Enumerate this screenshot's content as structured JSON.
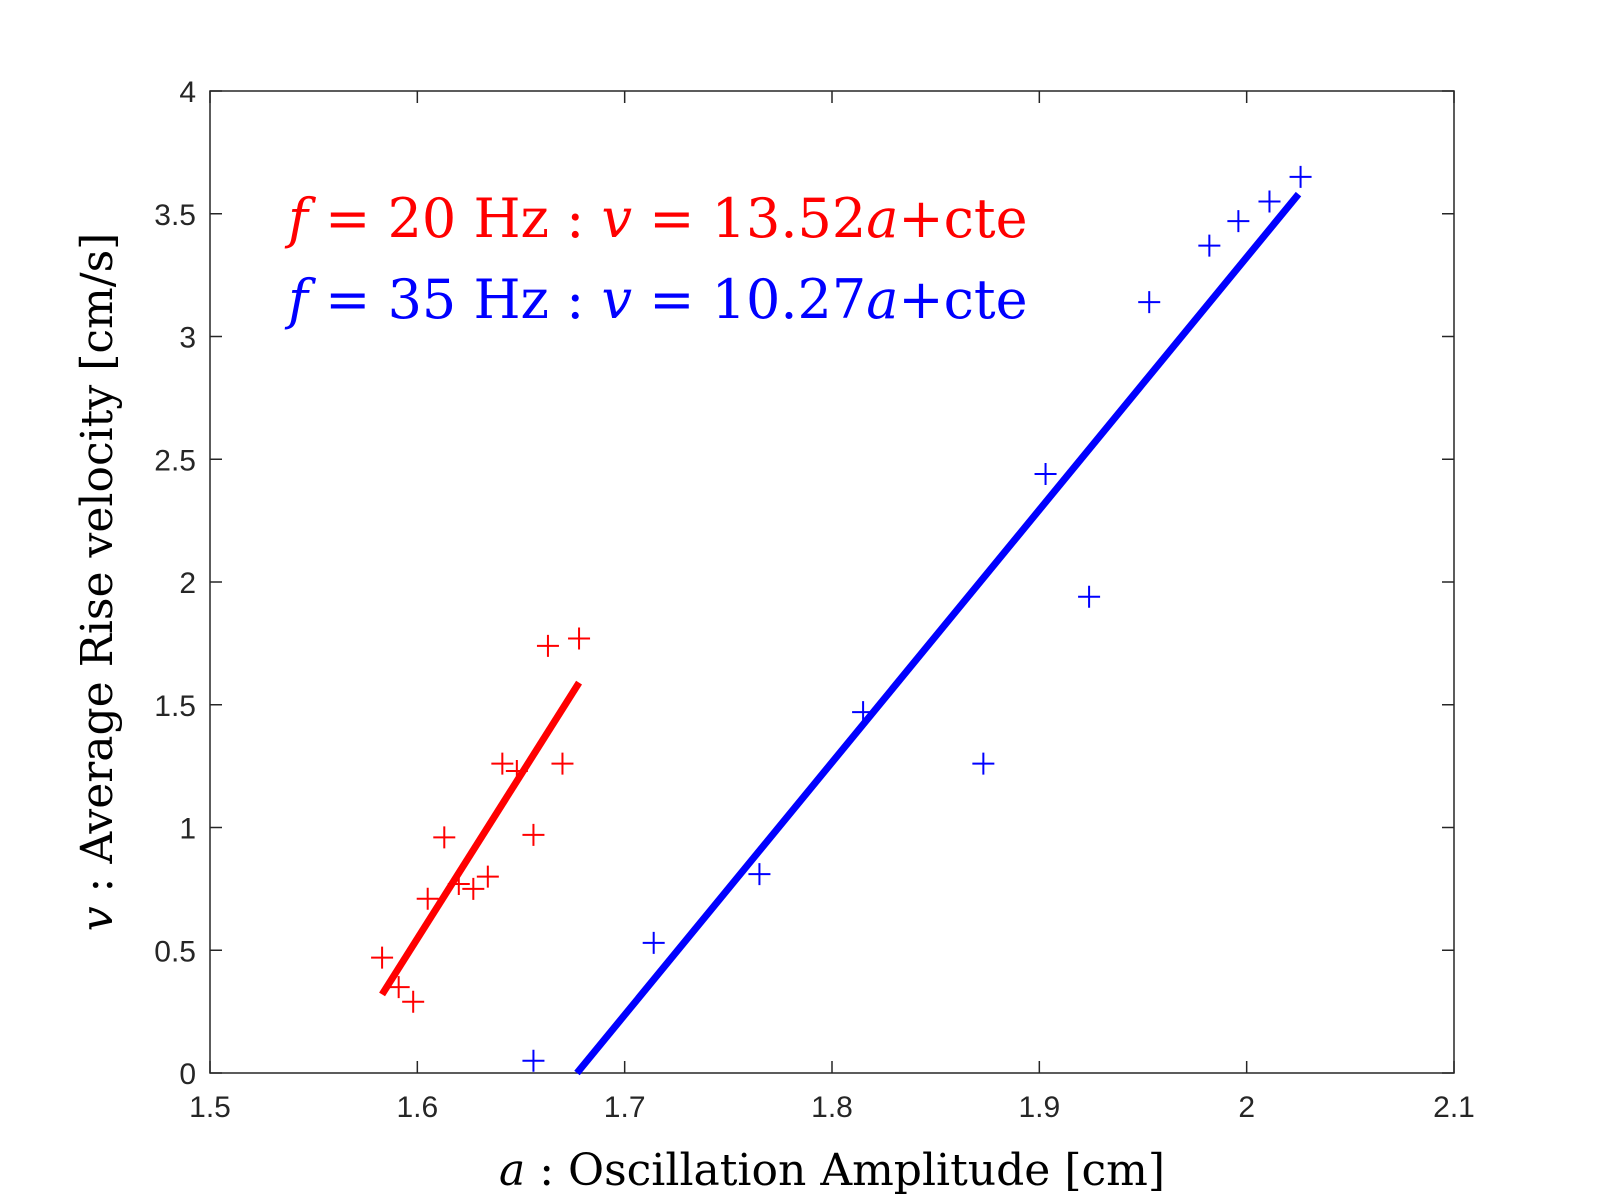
{
  "chart_data": {
    "type": "scatter",
    "xlabel": {
      "var": "a",
      "sep": " : ",
      "text": "Oscillation Amplitude [cm]"
    },
    "ylabel": {
      "var": "v",
      "sep": " : ",
      "text": "Average Rise velocity [cm/s]"
    },
    "xlim": [
      1.5,
      2.1
    ],
    "ylim": [
      0,
      4
    ],
    "xticks": [
      1.5,
      1.6,
      1.7,
      1.8,
      1.9,
      2.0,
      2.1
    ],
    "xtick_labels": [
      "1.5",
      "1.6",
      "1.7",
      "1.8",
      "1.9",
      "2",
      "2.1"
    ],
    "yticks": [
      0,
      0.5,
      1,
      1.5,
      2,
      2.5,
      3,
      3.5,
      4
    ],
    "ytick_labels": [
      "0",
      "0.5",
      "1",
      "1.5",
      "2",
      "2.5",
      "3",
      "3.5",
      "4"
    ],
    "grid": false,
    "legend_position": "top-left",
    "series": [
      {
        "color": "#ff0000",
        "marker": "+",
        "points": [
          [
            1.583,
            0.47
          ],
          [
            1.591,
            0.35
          ],
          [
            1.598,
            0.29
          ],
          [
            1.605,
            0.71
          ],
          [
            1.613,
            0.96
          ],
          [
            1.62,
            0.77
          ],
          [
            1.627,
            0.75
          ],
          [
            1.634,
            0.8
          ],
          [
            1.641,
            1.26
          ],
          [
            1.648,
            1.23
          ],
          [
            1.656,
            0.97
          ],
          [
            1.663,
            1.74
          ],
          [
            1.67,
            1.26
          ],
          [
            1.678,
            1.77
          ]
        ],
        "fit": {
          "x": [
            1.583,
            1.678
          ],
          "y": [
            0.32,
            1.59
          ]
        }
      },
      {
        "color": "#0000ff",
        "marker": "+",
        "points": [
          [
            1.656,
            0.05
          ],
          [
            1.714,
            0.53
          ],
          [
            1.765,
            0.81
          ],
          [
            1.815,
            1.47
          ],
          [
            1.873,
            1.26
          ],
          [
            1.903,
            2.44
          ],
          [
            1.924,
            1.94
          ],
          [
            1.953,
            3.14
          ],
          [
            1.982,
            3.37
          ],
          [
            1.996,
            3.47
          ],
          [
            2.011,
            3.55
          ],
          [
            2.026,
            3.65
          ]
        ],
        "fit": {
          "x": [
            1.677,
            2.025
          ],
          "y": [
            0.0,
            3.58
          ]
        }
      }
    ],
    "legend": [
      {
        "f": "f",
        "eq1": " = 20 Hz  : ",
        "v": "v",
        "eq2": " = 13.52",
        "a": "a",
        "tail": "+cte",
        "color": "#ff0000"
      },
      {
        "f": "f",
        "eq1": " = 35 Hz  : ",
        "v": "v",
        "eq2": " = 10.27",
        "a": "a",
        "tail": "+cte",
        "color": "#0000ff"
      }
    ]
  }
}
